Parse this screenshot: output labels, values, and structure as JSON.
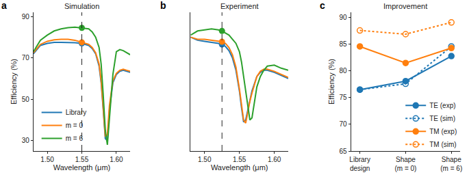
{
  "chart_data": [
    {
      "type": "line",
      "label": "a",
      "title": "Simulation",
      "x_label": "Wavelength (μm)",
      "y_label": "Efficiency (%)",
      "x": [
        1.48,
        1.49,
        1.5,
        1.51,
        1.52,
        1.53,
        1.54,
        1.55,
        1.56,
        1.565,
        1.57,
        1.575,
        1.578,
        1.581,
        1.584,
        1.587,
        1.59,
        1.595,
        1.6,
        1.605,
        1.61,
        1.615,
        1.62
      ],
      "series": [
        {
          "name": "Library",
          "color": "#1f77b4",
          "marked_value": 77,
          "values": [
            72,
            76,
            77,
            77.5,
            77.5,
            77.5,
            77.3,
            77,
            76,
            74.5,
            72,
            66,
            58,
            45,
            31,
            30,
            45,
            58,
            62,
            63.5,
            64,
            63.5,
            63
          ]
        },
        {
          "name": "m = 0",
          "color": "#ff7f0e",
          "marked_value": 77.5,
          "values": [
            72.5,
            76.5,
            78,
            78.7,
            79,
            79,
            78.5,
            77.5,
            76.5,
            75,
            72.5,
            67,
            59,
            46,
            32,
            33,
            47,
            59,
            62.5,
            64,
            64.5,
            64,
            63.5
          ]
        },
        {
          "name": "m = 6",
          "color": "#2ca02c",
          "marked_value": 84.5,
          "values": [
            73,
            78.5,
            81,
            83,
            84,
            84.6,
            84.8,
            84.5,
            84,
            82.5,
            80,
            75,
            67,
            52,
            35,
            28,
            40,
            62,
            73,
            74,
            73.5,
            72.5,
            71.5
          ]
        }
      ],
      "marked_x": 1.55,
      "xlim": [
        1.48,
        1.62
      ],
      "xticks": [
        {
          "value": 1.5,
          "label": "1.50"
        },
        1.55,
        {
          "value": 1.6,
          "label": "1.60"
        }
      ],
      "ylim": [
        25,
        92
      ],
      "yticks": [
        30,
        50,
        70,
        90
      ],
      "grid": false,
      "legend": "lower left"
    },
    {
      "type": "line",
      "label": "b",
      "title": "Experiment",
      "x_label": "Wavelength (μm)",
      "x": [
        1.48,
        1.49,
        1.5,
        1.51,
        1.52,
        1.525,
        1.53,
        1.535,
        1.54,
        1.545,
        1.55,
        1.553,
        1.556,
        1.559,
        1.562,
        1.565,
        1.568,
        1.571,
        1.575,
        1.58,
        1.585,
        1.59,
        1.6,
        1.61,
        1.62
      ],
      "series": [
        {
          "name": "Library",
          "color": "#1f77b4",
          "marked_value": 76.5,
          "values": [
            80,
            78.5,
            78,
            77.5,
            77,
            76.5,
            75.5,
            73.5,
            70,
            64,
            54,
            46,
            39,
            40,
            45,
            50,
            54,
            57,
            61,
            63,
            64,
            64,
            63,
            61.5,
            60
          ]
        },
        {
          "name": "m = 0",
          "color": "#ff7f0e",
          "marked_value": 77.8,
          "values": [
            80,
            79,
            79,
            78.5,
            78,
            77.8,
            77,
            75,
            71.5,
            65.5,
            55,
            47,
            40,
            38.5,
            44,
            49,
            53,
            56.5,
            61,
            63.5,
            64.5,
            64.5,
            63.5,
            62,
            60.5
          ]
        },
        {
          "name": "m = 6",
          "color": "#2ca02c",
          "marked_value": 83,
          "values": [
            81,
            83,
            83.5,
            84,
            83.5,
            83,
            82,
            81,
            79,
            77,
            73,
            68,
            61,
            54,
            46,
            40,
            41,
            48,
            56,
            61,
            64,
            66,
            66.5,
            65,
            64
          ]
        }
      ],
      "marked_x": 1.525,
      "xlim": [
        1.48,
        1.62
      ],
      "xticks": [
        {
          "value": 1.5,
          "label": "1.50"
        },
        1.55,
        {
          "value": 1.6,
          "label": "1.60"
        }
      ],
      "ylim": [
        25,
        92
      ],
      "grid": false,
      "tick_labels": "x"
    },
    {
      "type": "line",
      "label": "c",
      "title": "Improvement",
      "y_label": "Efficiency (%)",
      "categories": [
        "Library\ndesign",
        "Shape\n(m = 0)",
        "Shape\n(m = 6)"
      ],
      "series": [
        {
          "name": "TE (exp)",
          "color": "#1f77b4",
          "marker": "circle",
          "line_style": "solid",
          "values": [
            76.5,
            78.1,
            82.8
          ]
        },
        {
          "name": "TE (sim)",
          "color": "#1f77b4",
          "marker": "circle-open",
          "line_style": "dot",
          "values": [
            76.5,
            77.6,
            84.6
          ]
        },
        {
          "name": "TM (exp)",
          "color": "#ff7f0e",
          "marker": "circle",
          "line_style": "solid",
          "values": [
            84.6,
            81.5,
            84.3
          ]
        },
        {
          "name": "TM (sim)",
          "color": "#ff7f0e",
          "marker": "circle-open",
          "line_style": "dot",
          "values": [
            87.6,
            86.9,
            89.1
          ]
        }
      ],
      "ylim": [
        65,
        91
      ],
      "yticks": [
        65,
        70,
        75,
        80,
        85,
        90
      ],
      "grid": false,
      "legend": "center right"
    }
  ]
}
